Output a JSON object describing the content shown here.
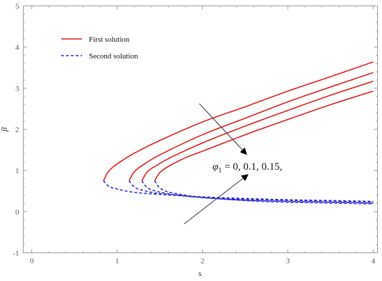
{
  "chart_data": {
    "type": "line",
    "xlabel": "s",
    "ylabel": "β",
    "xlim": [
      -0.1,
      4.05
    ],
    "ylim": [
      -1,
      5
    ],
    "xticks": [
      0,
      1,
      2,
      3,
      4
    ],
    "yticks": [
      -1,
      0,
      1,
      2,
      3,
      4,
      5
    ],
    "grid": false,
    "legend_position": "top-left",
    "legend": [
      {
        "label": "First solution",
        "color": "#e31a1c",
        "style": "solid"
      },
      {
        "label": "Second solution",
        "color": "#2727d6",
        "style": "dashed"
      }
    ],
    "annotation": {
      "symbol": "φ",
      "subscript": "1",
      "text": " = 0, 0.1, 0.15,"
    },
    "series": [
      {
        "style": "solid",
        "color": "#e31a1c",
        "x": [
          0.84,
          0.9,
          1.0,
          1.2,
          1.5,
          2.0,
          2.5,
          3.0,
          3.5,
          4.0
        ],
        "y": [
          0.75,
          0.98,
          1.16,
          1.42,
          1.73,
          2.18,
          2.55,
          2.93,
          3.28,
          3.64
        ]
      },
      {
        "style": "dashed",
        "color": "#2727d6",
        "x": [
          0.84,
          0.9,
          1.0,
          1.2,
          1.5,
          2.0,
          2.5,
          3.0,
          3.5,
          4.0
        ],
        "y": [
          0.75,
          0.62,
          0.55,
          0.47,
          0.42,
          0.36,
          0.32,
          0.29,
          0.27,
          0.25
        ]
      },
      {
        "style": "solid",
        "color": "#e31a1c",
        "x": [
          1.14,
          1.2,
          1.3,
          1.5,
          2.0,
          2.5,
          3.0,
          3.5,
          4.0
        ],
        "y": [
          0.75,
          0.97,
          1.13,
          1.38,
          1.87,
          2.27,
          2.67,
          3.03,
          3.38
        ]
      },
      {
        "style": "dashed",
        "color": "#2727d6",
        "x": [
          1.14,
          1.2,
          1.3,
          1.5,
          2.0,
          2.5,
          3.0,
          3.5,
          4.0
        ],
        "y": [
          0.75,
          0.6,
          0.52,
          0.44,
          0.35,
          0.3,
          0.27,
          0.25,
          0.23
        ]
      },
      {
        "style": "solid",
        "color": "#e31a1c",
        "x": [
          1.29,
          1.35,
          1.45,
          1.65,
          2.0,
          2.5,
          3.0,
          3.5,
          4.0
        ],
        "y": [
          0.75,
          0.96,
          1.11,
          1.34,
          1.67,
          2.08,
          2.46,
          2.83,
          3.17
        ]
      },
      {
        "style": "dashed",
        "color": "#2727d6",
        "x": [
          1.29,
          1.35,
          1.45,
          1.65,
          2.0,
          2.5,
          3.0,
          3.5,
          4.0
        ],
        "y": [
          0.75,
          0.59,
          0.5,
          0.42,
          0.34,
          0.28,
          0.25,
          0.23,
          0.21
        ]
      },
      {
        "style": "solid",
        "color": "#e31a1c",
        "x": [
          1.44,
          1.5,
          1.6,
          1.8,
          2.0,
          2.5,
          3.0,
          3.5,
          4.0
        ],
        "y": [
          0.75,
          0.95,
          1.1,
          1.31,
          1.47,
          1.87,
          2.24,
          2.6,
          2.93
        ]
      },
      {
        "style": "dashed",
        "color": "#2727d6",
        "x": [
          1.44,
          1.5,
          1.6,
          1.8,
          2.0,
          2.5,
          3.0,
          3.5,
          4.0
        ],
        "y": [
          0.75,
          0.58,
          0.48,
          0.4,
          0.35,
          0.27,
          0.23,
          0.21,
          0.19
        ]
      }
    ]
  }
}
